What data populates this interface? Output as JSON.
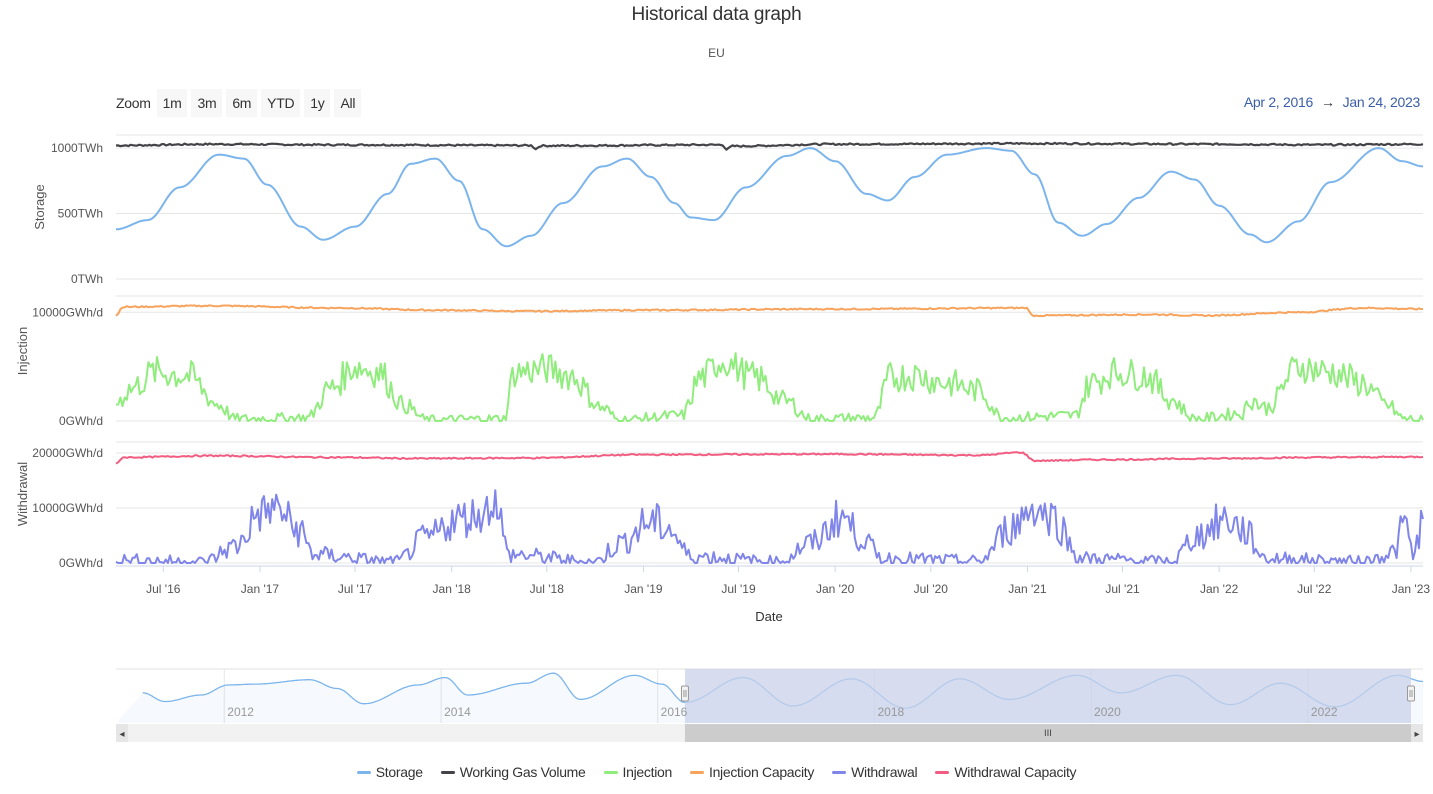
{
  "title": "Historical data graph",
  "subtitle": "EU",
  "zoom": {
    "label": "Zoom",
    "buttons": [
      "1m",
      "3m",
      "6m",
      "YTD",
      "1y",
      "All"
    ]
  },
  "range": {
    "from": "Apr 2, 2016",
    "separator": "→",
    "to": "Jan 24, 2023"
  },
  "navigator": {
    "year_labels": [
      "2012",
      "2014",
      "2016",
      "2018",
      "2020",
      "2022"
    ],
    "scroll_grip": "III",
    "scroll_left": "◂",
    "scroll_right": "▸"
  },
  "colors": {
    "storage": "#7cb5ec",
    "working_gas_volume": "#434348",
    "injection": "#90ed7d",
    "injection_capacity": "#f7a35c",
    "withdrawal": "#8085e9",
    "withdrawal_capacity": "#f15c80",
    "navigator_mask": "#c9d1ea",
    "range_text": "#3a5ea8"
  },
  "chart_data": {
    "type": "line",
    "xlabel": "Date",
    "x_range": [
      "2016-04-02",
      "2023-01-24"
    ],
    "x_ticks": [
      "Jul '16",
      "Jan '17",
      "Jul '17",
      "Jan '18",
      "Jul '18",
      "Jan '19",
      "Jul '19",
      "Jan '20",
      "Jul '20",
      "Jan '21",
      "Jul '21",
      "Jan '22",
      "Jul '22",
      "Jan '23"
    ],
    "panels": [
      {
        "ylabel": "Storage",
        "ylim": [
          0,
          1100
        ],
        "y_ticks": [
          {
            "value": 1000,
            "label": "1000TWh"
          },
          {
            "value": 500,
            "label": "500TWh"
          },
          {
            "value": 0,
            "label": "0TWh"
          }
        ],
        "series": [
          {
            "name": "Working Gas Volume",
            "key": "working_gas_volume",
            "x": [
              "2016-04-02",
              "2016-10-01",
              "2017-06-01",
              "2018-06-01",
              "2018-06-10",
              "2018-06-20",
              "2019-06-01",
              "2019-06-08",
              "2019-06-20",
              "2020-01-01",
              "2021-01-01",
              "2022-01-01",
              "2022-07-01",
              "2023-01-24"
            ],
            "values": [
              1020,
              1030,
              1025,
              1020,
              995,
              1018,
              1025,
              990,
              1015,
              1030,
              1035,
              1030,
              1025,
              1030
            ]
          },
          {
            "name": "Storage",
            "key": "storage",
            "x": [
              "2016-04-02",
              "2016-06-01",
              "2016-08-01",
              "2016-10-15",
              "2016-12-01",
              "2017-01-15",
              "2017-03-20",
              "2017-05-01",
              "2017-07-01",
              "2017-09-01",
              "2017-10-15",
              "2017-12-01",
              "2018-01-15",
              "2018-03-01",
              "2018-04-15",
              "2018-06-01",
              "2018-08-01",
              "2018-10-15",
              "2018-12-01",
              "2019-01-15",
              "2019-03-01",
              "2019-04-01",
              "2019-05-15",
              "2019-07-15",
              "2019-10-01",
              "2019-11-15",
              "2020-01-01",
              "2020-03-01",
              "2020-04-10",
              "2020-06-01",
              "2020-08-01",
              "2020-10-15",
              "2020-12-01",
              "2021-01-15",
              "2021-03-01",
              "2021-04-15",
              "2021-06-01",
              "2021-08-01",
              "2021-10-01",
              "2021-11-15",
              "2022-01-01",
              "2022-03-01",
              "2022-04-01",
              "2022-06-01",
              "2022-08-01",
              "2022-11-01",
              "2022-12-15",
              "2023-01-24"
            ],
            "values": [
              380,
              450,
              700,
              950,
              920,
              720,
              400,
              300,
              400,
              650,
              880,
              920,
              750,
              380,
              250,
              330,
              580,
              860,
              920,
              780,
              580,
              470,
              450,
              700,
              940,
              1000,
              900,
              650,
              600,
              780,
              950,
              1000,
              980,
              800,
              430,
              330,
              420,
              620,
              820,
              760,
              560,
              340,
              280,
              440,
              740,
              1000,
              900,
              860
            ]
          }
        ]
      },
      {
        "ylabel": "Injection",
        "ylim": [
          0,
          11500
        ],
        "y_ticks": [
          {
            "value": 10000,
            "label": "10000GWh/d"
          },
          {
            "value": 0,
            "label": "0GWh/d"
          }
        ],
        "series": [
          {
            "name": "Injection Capacity",
            "key": "injection_capacity",
            "x": [
              "2016-04-02",
              "2016-04-15",
              "2016-10-01",
              "2017-06-01",
              "2017-12-01",
              "2018-06-01",
              "2019-01-01",
              "2020-01-01",
              "2020-12-31",
              "2021-01-10",
              "2021-09-01",
              "2021-12-01",
              "2022-06-01",
              "2022-10-01",
              "2023-01-24"
            ],
            "values": [
              9700,
              10500,
              10600,
              10400,
              10200,
              10100,
              10200,
              10300,
              10400,
              9700,
              9800,
              9700,
              10000,
              10400,
              10300
            ]
          },
          {
            "name": "Injection",
            "key": "injection",
            "x": [
              "2016-04-02",
              "2016-05-01",
              "2016-06-15",
              "2016-08-15",
              "2016-10-15",
              "2016-11-15",
              "2017-04-01",
              "2017-05-15",
              "2017-07-01",
              "2017-08-15",
              "2017-10-01",
              "2017-11-15",
              "2018-04-10",
              "2018-05-01",
              "2018-07-01",
              "2018-08-15",
              "2018-10-15",
              "2018-11-15",
              "2019-03-15",
              "2019-04-20",
              "2019-06-01",
              "2019-08-01",
              "2019-10-01",
              "2019-11-15",
              "2020-03-15",
              "2020-04-15",
              "2020-06-01",
              "2020-08-01",
              "2020-10-01",
              "2020-11-15",
              "2021-04-01",
              "2021-05-01",
              "2021-06-15",
              "2021-08-15",
              "2021-10-01",
              "2021-11-15",
              "2022-02-15",
              "2022-03-01",
              "2022-04-01",
              "2022-06-01",
              "2022-08-01",
              "2022-10-01",
              "2022-11-15",
              "2022-12-20",
              "2023-01-24"
            ],
            "values": [
              1700,
              3000,
              4500,
              4200,
              1500,
              200,
              300,
              3000,
              5000,
              4500,
              1500,
              100,
              200,
              4500,
              4800,
              4200,
              1200,
              100,
              500,
              4000,
              5500,
              4000,
              1800,
              200,
              300,
              4000,
              4200,
              3500,
              2800,
              300,
              500,
              3500,
              4500,
              4200,
              2000,
              200,
              700,
              2000,
              1200,
              5000,
              4500,
              3500,
              1500,
              200,
              100
            ]
          }
        ]
      },
      {
        "ylabel": "Withdrawal",
        "ylim": [
          0,
          22000
        ],
        "y_ticks": [
          {
            "value": 20000,
            "label": "20000GWh/d"
          },
          {
            "value": 10000,
            "label": "10000GWh/d"
          },
          {
            "value": 0,
            "label": "0GWh/d"
          }
        ],
        "series": [
          {
            "name": "Withdrawal Capacity",
            "key": "withdrawal_capacity",
            "x": [
              "2016-04-02",
              "2016-04-15",
              "2016-10-01",
              "2017-06-01",
              "2017-11-01",
              "2018-06-01",
              "2019-01-01",
              "2020-01-01",
              "2020-10-01",
              "2020-12-20",
              "2021-01-15",
              "2021-06-01",
              "2022-01-01",
              "2022-07-01",
              "2023-01-24"
            ],
            "values": [
              18000,
              19200,
              19500,
              19200,
              19000,
              19100,
              19700,
              19800,
              19600,
              20100,
              18600,
              18800,
              19000,
              19200,
              19300
            ]
          },
          {
            "name": "Withdrawal",
            "key": "withdrawal",
            "x": [
              "2016-04-02",
              "2016-09-15",
              "2016-11-15",
              "2017-01-01",
              "2017-02-01",
              "2017-03-15",
              "2017-04-15",
              "2017-09-15",
              "2017-11-15",
              "2018-01-10",
              "2018-03-01",
              "2018-03-25",
              "2018-04-20",
              "2018-10-01",
              "2018-11-15",
              "2019-01-15",
              "2019-02-15",
              "2019-04-01",
              "2019-09-15",
              "2019-11-15",
              "2020-01-15",
              "2020-02-15",
              "2020-04-01",
              "2020-10-01",
              "2020-12-01",
              "2021-01-10",
              "2021-02-15",
              "2021-04-15",
              "2021-10-01",
              "2021-11-20",
              "2022-01-15",
              "2022-02-15",
              "2022-04-01",
              "2022-10-01",
              "2022-12-01",
              "2022-12-20",
              "2023-01-05",
              "2023-01-24"
            ],
            "values": [
              500,
              200,
              3000,
              9000,
              10000,
              6000,
              1500,
              200,
              4500,
              8000,
              9000,
              11500,
              1500,
              200,
              3500,
              7500,
              6500,
              1200,
              200,
              3500,
              8500,
              5000,
              800,
              300,
              6500,
              10000,
              8500,
              800,
              200,
              5000,
              8000,
              6000,
              800,
              200,
              2000,
              7500,
              1500,
              8000
            ]
          }
        ]
      }
    ],
    "navigator": {
      "x_range": [
        "2011-01-01",
        "2023-01-24"
      ],
      "selected_range": [
        "2016-04-02",
        "2023-01-24"
      ],
      "series": {
        "name": "Storage",
        "x": [
          "2011-04-01",
          "2011-06-15",
          "2011-10-15",
          "2012-01-15",
          "2012-04-15",
          "2012-10-15",
          "2013-01-15",
          "2013-04-15",
          "2013-10-15",
          "2014-01-15",
          "2014-04-01",
          "2014-10-15",
          "2015-01-15",
          "2015-04-15",
          "2015-10-15",
          "2016-01-15",
          "2016-04-02",
          "2016-10-15",
          "2017-04-01",
          "2017-10-15",
          "2018-04-15",
          "2018-10-15",
          "2019-04-01",
          "2019-11-15",
          "2020-04-10",
          "2020-10-15",
          "2021-04-15",
          "2021-10-01",
          "2022-04-01",
          "2022-11-01",
          "2023-01-24"
        ],
        "values": [
          600,
          400,
          550,
          780,
          800,
          900,
          700,
          350,
          780,
          950,
          550,
          820,
          1050,
          450,
          1000,
          800,
          380,
          950,
          300,
          920,
          250,
          920,
          450,
          1000,
          600,
          1000,
          330,
          820,
          280,
          1000,
          860
        ]
      }
    }
  },
  "legend": [
    {
      "label": "Storage",
      "key": "storage"
    },
    {
      "label": "Working Gas Volume",
      "key": "working_gas_volume"
    },
    {
      "label": "Injection",
      "key": "injection"
    },
    {
      "label": "Injection Capacity",
      "key": "injection_capacity"
    },
    {
      "label": "Withdrawal",
      "key": "withdrawal"
    },
    {
      "label": "Withdrawal Capacity",
      "key": "withdrawal_capacity"
    }
  ]
}
